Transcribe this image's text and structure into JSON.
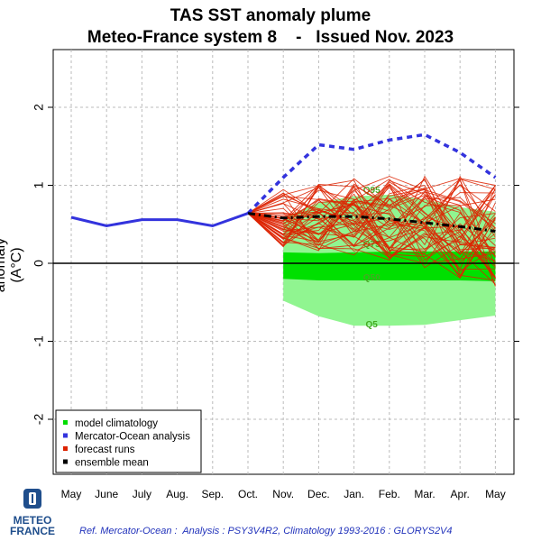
{
  "title_line1": "TAS SST anomaly plume",
  "title_line2": "Meteo-France system 8    -   Issued Nov. 2023",
  "footer": "Ref. Mercator-Ocean :  Analysis : PSY3V4R2, Climatology 1993-2016 : GLORYS2V4",
  "logo": {
    "line1": "METEO",
    "line2": "FRANCE"
  },
  "colors": {
    "analysis": "#3333dd",
    "forecast": "#dd2200",
    "mean": "#000000",
    "clim_outer": "#90f590",
    "clim_mid": "#55ee55",
    "clim_inner": "#00e000",
    "quantile_text": "#44aa22"
  },
  "chart_data": {
    "type": "line",
    "ylabel": "anomaly (A°C)",
    "ylim": [
      -2.6,
      2.6
    ],
    "yticks": [
      -2,
      -1,
      0,
      1,
      2
    ],
    "grid": true,
    "categories": [
      "May",
      "June",
      "July",
      "Aug.",
      "Sep.",
      "Oct.",
      "Nov.",
      "Dec.",
      "Jan.",
      "Feb.",
      "Mar.",
      "Apr.",
      "May"
    ],
    "legend_position": "bottom-left",
    "legend": [
      {
        "label": "model climatology",
        "color": "#00dd00"
      },
      {
        "label": "Mercator-Ocean analysis",
        "color": "#3333dd"
      },
      {
        "label": "forecast runs",
        "color": "#dd2200"
      },
      {
        "label": "ensemble mean",
        "color": "#000000"
      }
    ],
    "analysis": {
      "x": [
        0,
        1,
        2,
        3,
        4,
        5
      ],
      "y": [
        0.59,
        0.48,
        0.56,
        0.56,
        0.48,
        0.64
      ]
    },
    "ensemble_mean": {
      "x": [
        5,
        6,
        7,
        8,
        9,
        10,
        11,
        12
      ],
      "y": [
        0.64,
        0.58,
        0.6,
        0.6,
        0.57,
        0.52,
        0.47,
        0.41
      ]
    },
    "forecast_upper_envelope": {
      "x": [
        5,
        6,
        7,
        8,
        9,
        10,
        11,
        12
      ],
      "y": [
        0.64,
        1.1,
        1.52,
        1.46,
        1.58,
        1.65,
        1.42,
        1.1
      ]
    },
    "climatology": {
      "x": [
        6,
        7,
        8,
        9,
        10,
        11,
        12
      ],
      "Q5": [
        -0.48,
        -0.68,
        -0.8,
        -0.8,
        -0.79,
        -0.73,
        -0.67
      ],
      "Q25": [
        -0.2,
        -0.22,
        -0.22,
        -0.22,
        -0.22,
        -0.22,
        -0.23
      ],
      "Q75": [
        0.14,
        0.13,
        0.14,
        0.15,
        0.15,
        0.15,
        0.15
      ],
      "Q95": [
        0.58,
        0.78,
        0.86,
        0.88,
        0.82,
        0.72,
        0.66
      ],
      "Q50": [
        0.25,
        0.25,
        0.25,
        0.25,
        0.25,
        0.25,
        0.25
      ]
    },
    "quantile_labels": [
      {
        "text": "Q95",
        "x": 8.5,
        "y": 0.9
      },
      {
        "text": "Q75",
        "x": 8.5,
        "y": 0.21
      },
      {
        "text": "Q50",
        "x": 8.5,
        "y": -0.22
      },
      {
        "text": "Q5",
        "x": 8.5,
        "y": -0.82
      }
    ]
  }
}
